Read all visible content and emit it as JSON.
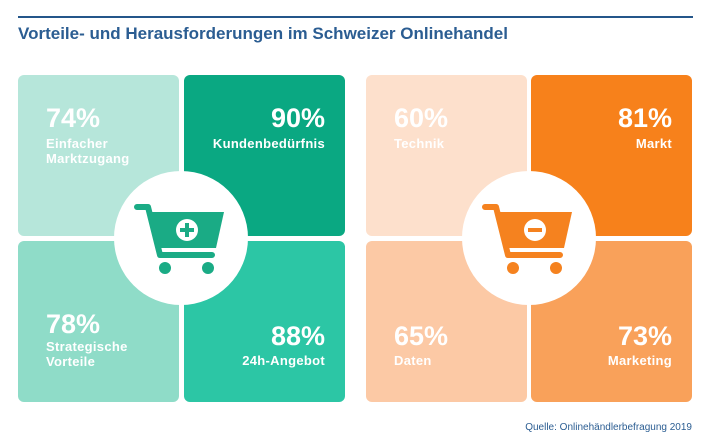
{
  "header": {
    "title": "Vorteile- und Herausforderungen im Schweizer Onlinehandel"
  },
  "panels": [
    {
      "tiles": [
        {
          "value": "74%",
          "lines": [
            "Einfacher",
            "Marktzugang"
          ]
        },
        {
          "value": "90%",
          "lines": [
            "Kundenbedürfnis"
          ]
        },
        {
          "value": "78%",
          "lines": [
            "Strategische",
            "Vorteile"
          ]
        },
        {
          "value": "88%",
          "lines": [
            "24h-Angebot"
          ]
        }
      ]
    },
    {
      "tiles": [
        {
          "value": "60%",
          "lines": [
            "Technik"
          ]
        },
        {
          "value": "81%",
          "lines": [
            "Markt"
          ]
        },
        {
          "value": "65%",
          "lines": [
            "Daten"
          ]
        },
        {
          "value": "73%",
          "lines": [
            "Marketing"
          ]
        }
      ]
    }
  ],
  "footer": {
    "source": "Quelle: Onlinehändlerbefragung 2019"
  }
}
